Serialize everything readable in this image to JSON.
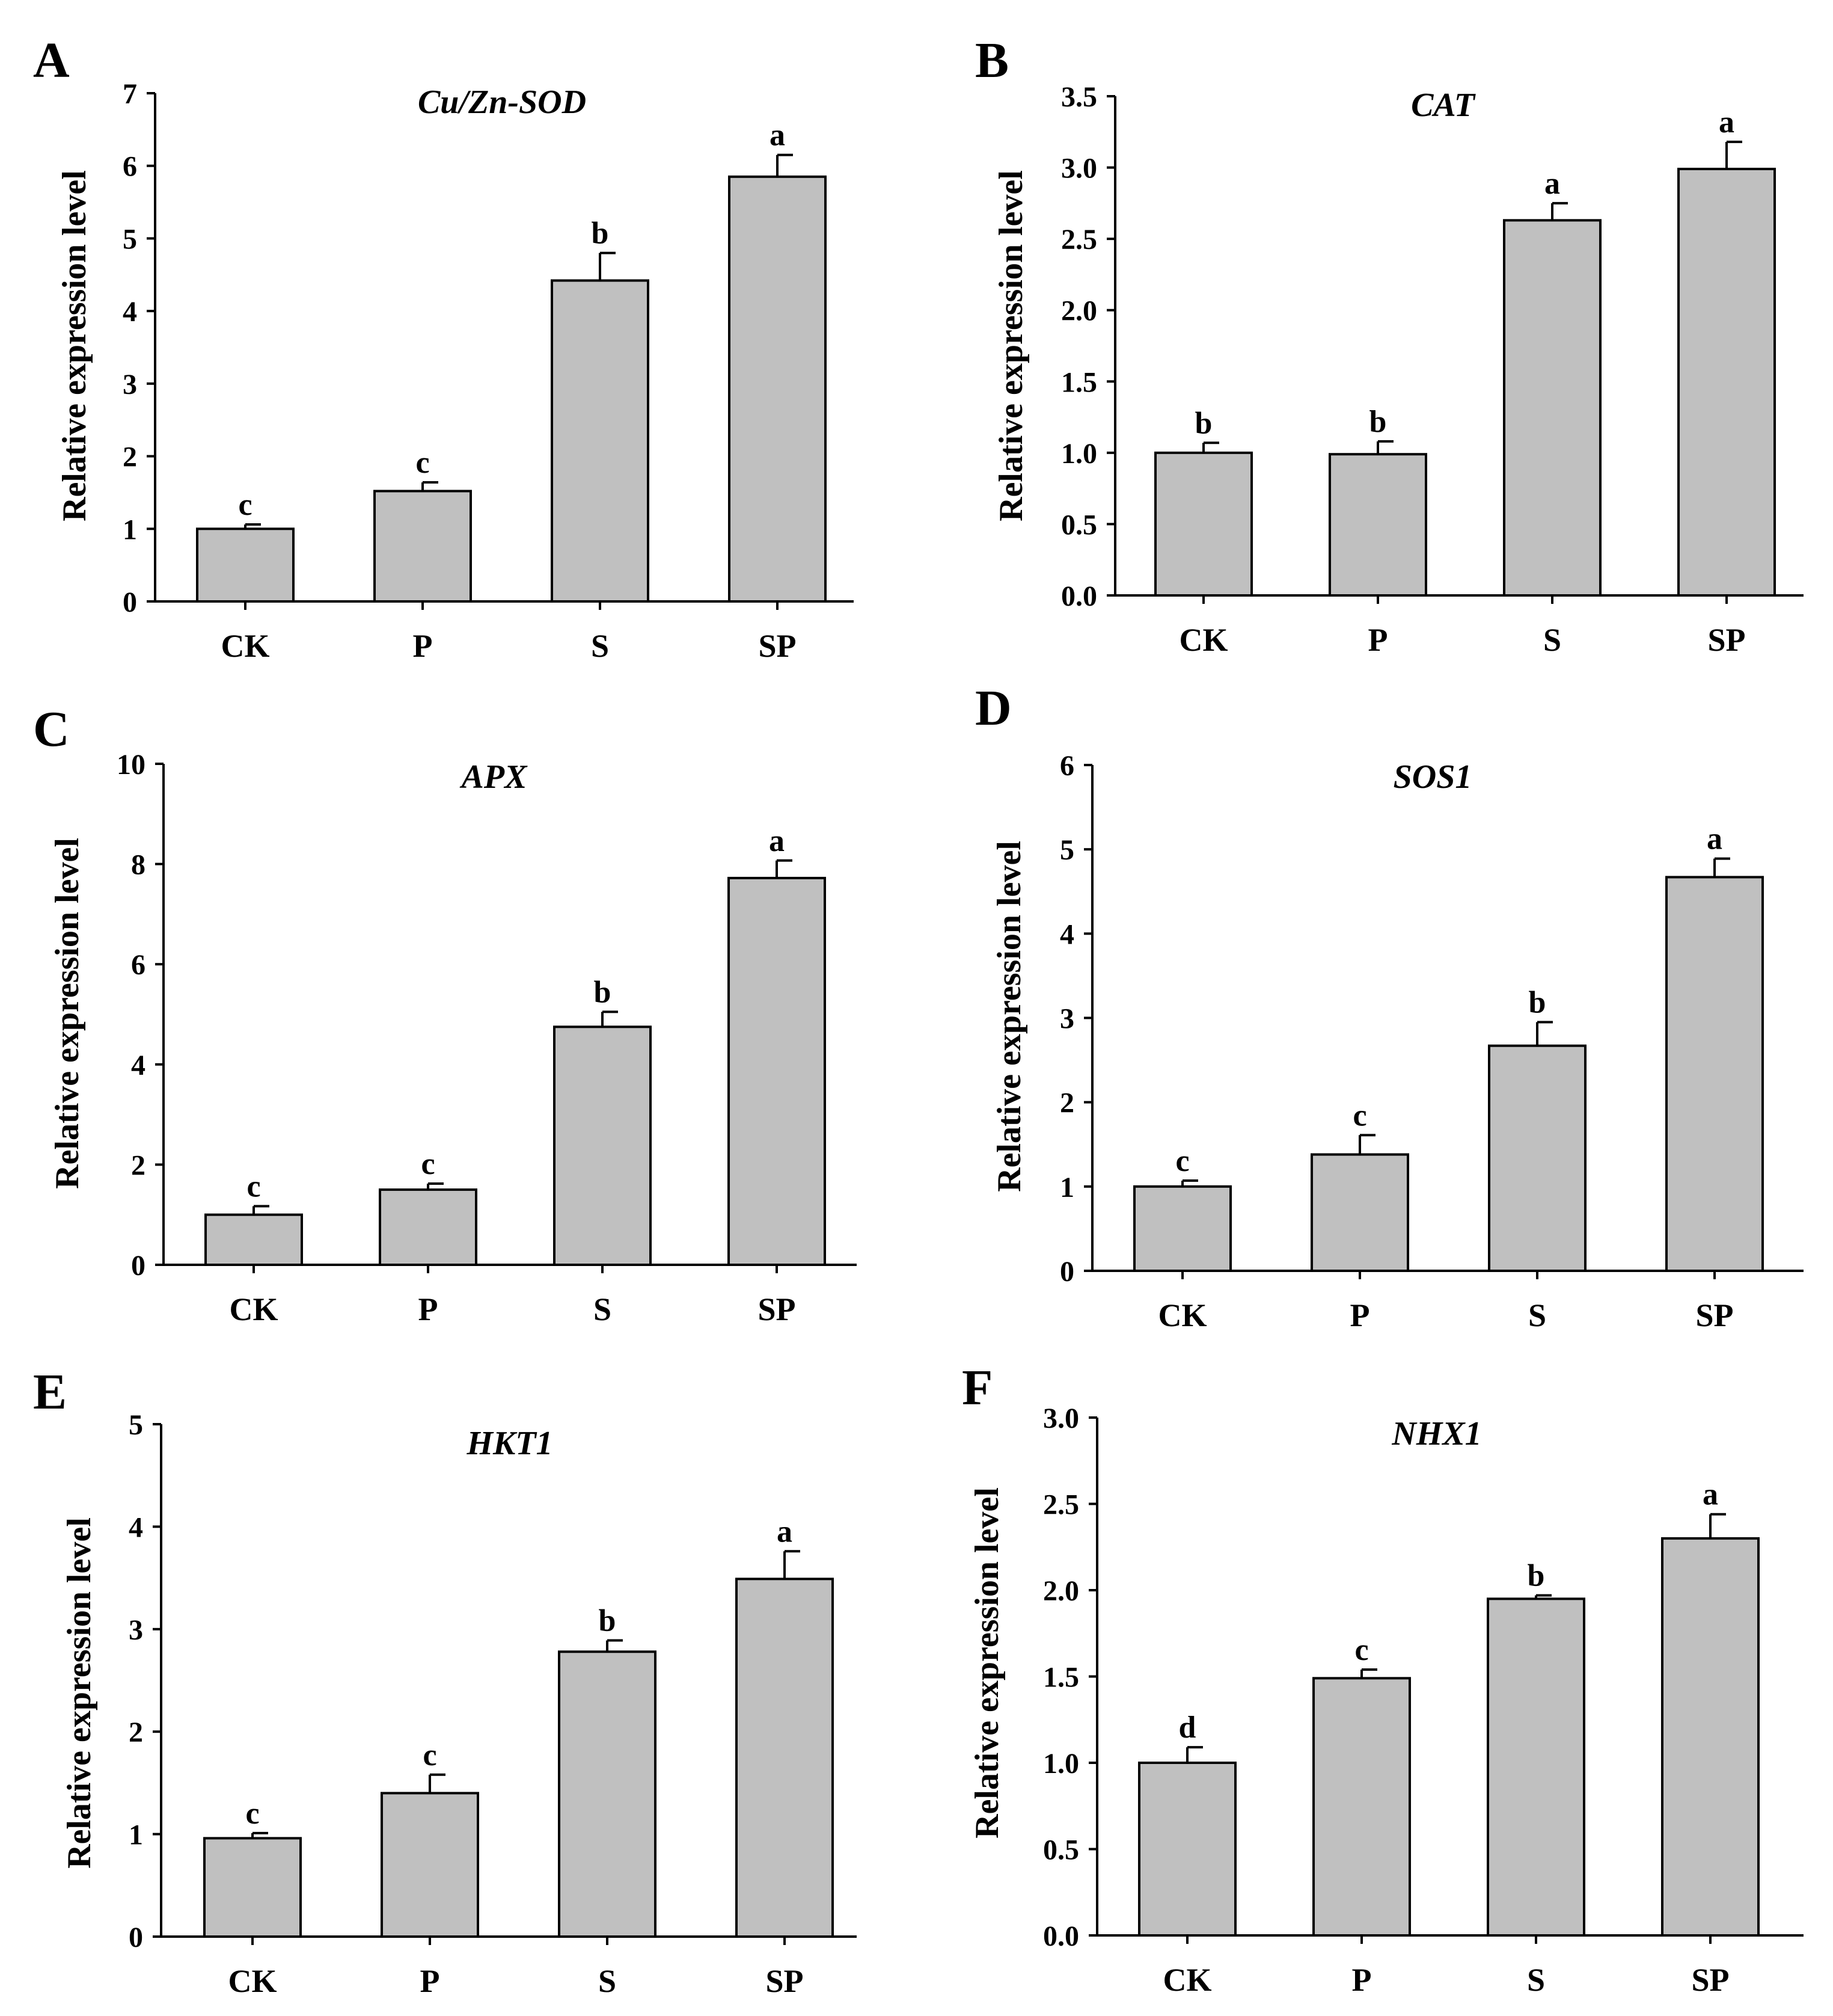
{
  "figure": {
    "background": "#ffffff",
    "bar_color": "#c0c0c0",
    "line_color": "#000000"
  },
  "chart_data": [
    {
      "panel": "A",
      "type": "bar",
      "title": "Cu/Zn-SOD",
      "xlabel": "",
      "ylabel": "Relative expression level",
      "categories": [
        "CK",
        "P",
        "S",
        "SP"
      ],
      "values": [
        1.0,
        1.52,
        4.42,
        5.85
      ],
      "errors": [
        0.06,
        0.12,
        0.38,
        0.3
      ],
      "letters": [
        "c",
        "c",
        "b",
        "a"
      ],
      "ylim": [
        0,
        7
      ],
      "yticks": [
        "0",
        "1",
        "2",
        "3",
        "4",
        "5",
        "6",
        "7"
      ]
    },
    {
      "panel": "B",
      "type": "bar",
      "title": "CAT",
      "xlabel": "",
      "ylabel": "Relative expression level",
      "categories": [
        "CK",
        "P",
        "S",
        "SP"
      ],
      "values": [
        1.0,
        0.99,
        2.63,
        2.99
      ],
      "errors": [
        0.07,
        0.09,
        0.12,
        0.19
      ],
      "letters": [
        "b",
        "b",
        "a",
        "a"
      ],
      "ylim": [
        0,
        3.5
      ],
      "yticks": [
        "0.0",
        "0.5",
        "1.0",
        "1.5",
        "2.0",
        "2.5",
        "3.0",
        "3.5"
      ]
    },
    {
      "panel": "C",
      "type": "bar",
      "title": "APX",
      "xlabel": "",
      "ylabel": "Relative expression level",
      "categories": [
        "CK",
        "P",
        "S",
        "SP"
      ],
      "values": [
        1.0,
        1.5,
        4.75,
        7.72
      ],
      "errors": [
        0.17,
        0.12,
        0.3,
        0.35
      ],
      "letters": [
        "c",
        "c",
        "b",
        "a"
      ],
      "ylim": [
        0,
        10
      ],
      "yticks": [
        "0",
        "2",
        "4",
        "6",
        "8",
        "10"
      ]
    },
    {
      "panel": "D",
      "type": "bar",
      "title": "SOS1",
      "xlabel": "",
      "ylabel": "Relative expression level",
      "categories": [
        "CK",
        "P",
        "S",
        "SP"
      ],
      "values": [
        1.0,
        1.38,
        2.67,
        4.67
      ],
      "errors": [
        0.07,
        0.23,
        0.28,
        0.22
      ],
      "letters": [
        "c",
        "c",
        "b",
        "a"
      ],
      "ylim": [
        0,
        6
      ],
      "yticks": [
        "0",
        "1",
        "2",
        "3",
        "4",
        "5",
        "6"
      ]
    },
    {
      "panel": "E",
      "type": "bar",
      "title": "HKT1",
      "xlabel": "",
      "ylabel": "Relative expression level",
      "categories": [
        "CK",
        "P",
        "S",
        "SP"
      ],
      "values": [
        0.96,
        1.4,
        2.78,
        3.49
      ],
      "errors": [
        0.05,
        0.18,
        0.11,
        0.27
      ],
      "letters": [
        "c",
        "c",
        "b",
        "a"
      ],
      "ylim": [
        0,
        5
      ],
      "yticks": [
        "0",
        "1",
        "2",
        "3",
        "4",
        "5"
      ]
    },
    {
      "panel": "F",
      "type": "bar",
      "title": "NHX1",
      "xlabel": "",
      "ylabel": "Relative expression level",
      "categories": [
        "CK",
        "P",
        "S",
        "SP"
      ],
      "values": [
        1.0,
        1.49,
        1.95,
        2.3
      ],
      "errors": [
        0.09,
        0.05,
        0.02,
        0.14
      ],
      "letters": [
        "d",
        "c",
        "b",
        "a"
      ],
      "ylim": [
        0,
        3
      ],
      "yticks": [
        "0.0",
        "0.5",
        "1.0",
        "1.5",
        "2.0",
        "2.5",
        "3.0"
      ]
    }
  ]
}
